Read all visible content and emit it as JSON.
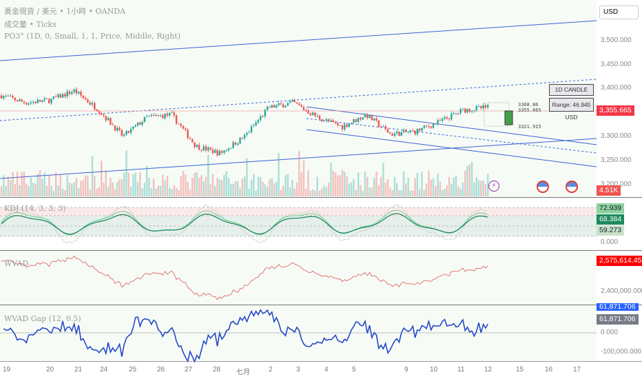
{
  "header": {
    "symbol": "黃金現貨 / 美元 • 1小時 • OANDA",
    "volume": "成交量 • Ticks",
    "indicator": "PO3° (1D, 0, Small, 1, 1, Price, Middle, Right)"
  },
  "currency": "USD",
  "price_axis": [
    "3,500.000",
    "3,450.000",
    "3,400.000",
    "3,300.000",
    "3,250.000",
    "3,200.000"
  ],
  "current_price": "3,355.665",
  "volume_badge": "4.51K",
  "po3_box": {
    "title": "1D CANDLE PO3°",
    "range": "Range: 46.945 USD"
  },
  "po3_levels": {
    "high": "3368.86",
    "close": "3355.665",
    "low": "3321.915"
  },
  "kdj": {
    "label": "KDJ (14, 3, 3, 3)",
    "values": [
      "72.939",
      "68.384",
      "59.273"
    ],
    "zero": "0.000",
    "colors": [
      "#8fd19e",
      "#1e8a5e",
      "#c9e1c8"
    ]
  },
  "wvad": {
    "label": "WVAD",
    "value": "2,575,614.455",
    "axis": "2,400,000.000"
  },
  "wvad_gap": {
    "label": "WVAD Gap (12, 0.5)",
    "value1": "61,871.706",
    "value2": "61,871.706",
    "axis": [
      "0.000",
      "-100,000.000"
    ]
  },
  "time_axis": [
    "19",
    "20",
    "21",
    "24",
    "25",
    "26",
    "27",
    "28",
    "七月",
    "2",
    "3",
    "4",
    "5",
    "9",
    "10",
    "11",
    "12",
    "15",
    "16",
    "17"
  ],
  "colors": {
    "up": "#26a69a",
    "down": "#ef5350",
    "line": "#3861d6",
    "wvad": "#e05555",
    "gap": "#2448c8"
  },
  "chart_data": {
    "type": "candlestick",
    "waypoints": [
      3385,
      3370,
      3375,
      3395,
      3355,
      3300,
      3340,
      3345,
      3280,
      3265,
      3300,
      3360,
      3370,
      3340,
      3320,
      3345,
      3305,
      3310,
      3330,
      3355,
      3360
    ]
  }
}
